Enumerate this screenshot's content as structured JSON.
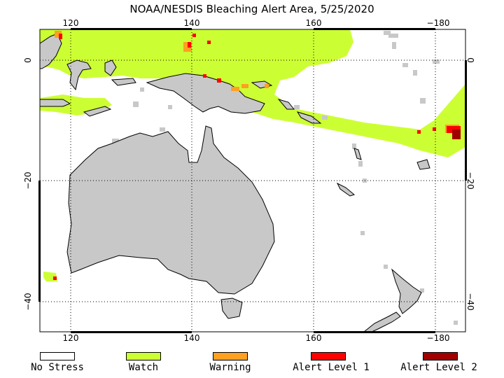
{
  "title": "NOAA/NESDIS Bleaching Alert Area, 5/25/2020",
  "map": {
    "projection": "equirectangular",
    "lon_range": [
      115,
      185
    ],
    "lat_range": [
      5,
      -45
    ],
    "top_ticks": [
      "120",
      "140",
      "160",
      "−180"
    ],
    "bottom_ticks": [
      "120",
      "140",
      "160",
      "−180"
    ],
    "left_ticks": [
      "0",
      "−20",
      "−40"
    ],
    "right_ticks": [
      "0",
      "−20",
      "−40"
    ],
    "tick_lons": [
      120,
      140,
      160,
      180
    ],
    "tick_lats": [
      0,
      -20,
      -40
    ],
    "colors": {
      "land": "#c8c8c8",
      "no_data": "#c8c8c8",
      "watch": "#ccff33",
      "warning": "#ffa020",
      "alert1": "#ff0000",
      "alert2": "#a00000",
      "ocean": "#ffffff"
    }
  },
  "legend": [
    {
      "label": "No Stress",
      "color": "#ffffff"
    },
    {
      "label": "Watch",
      "color": "#ccff33"
    },
    {
      "label": "Warning",
      "color": "#ffa020"
    },
    {
      "label": "Alert Level 1",
      "color": "#ff0000"
    },
    {
      "label": "Alert Level 2",
      "color": "#a00000"
    }
  ]
}
